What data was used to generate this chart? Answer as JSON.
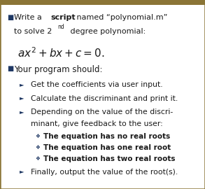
{
  "bg_color": "#ffffff",
  "border_color": "#8b7536",
  "top_bar_color": "#8b7536",
  "blue_color": "#1f3864",
  "black": "#1a1a1a",
  "arrow1": "Get the coefficients via user input.",
  "arrow2": "Calculate the discriminant and print it.",
  "arrow3a": "Depending on the value of the discri-",
  "arrow3b": "minant, give feedback to the user:",
  "sub1": "The equation has no real roots",
  "sub2": "The equation has one real root",
  "sub3": "The equation has two real roots",
  "arrow4": "Finally, output the value of the root(s).",
  "fig_width": 2.93,
  "fig_height": 2.7,
  "dpi": 100
}
